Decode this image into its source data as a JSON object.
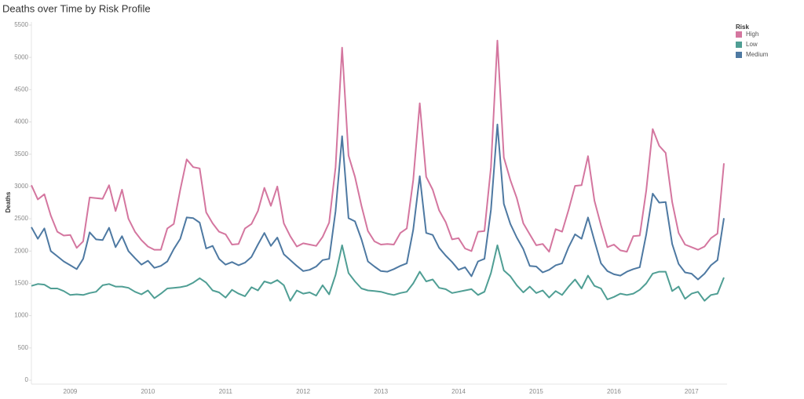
{
  "chart_data": {
    "type": "line",
    "title": "Deaths over Time by Risk Profile",
    "y_label": "Deaths",
    "legend_title": "Risk",
    "categories": [
      null,
      null,
      null,
      null,
      null,
      null,
      "2009",
      null,
      null,
      null,
      null,
      null,
      null,
      null,
      null,
      null,
      null,
      null,
      "2010",
      null,
      null,
      null,
      null,
      null,
      null,
      null,
      null,
      null,
      null,
      null,
      "2011",
      null,
      null,
      null,
      null,
      null,
      null,
      null,
      null,
      null,
      null,
      null,
      "2012",
      null,
      null,
      null,
      null,
      null,
      null,
      null,
      null,
      null,
      null,
      null,
      "2013",
      null,
      null,
      null,
      null,
      null,
      null,
      null,
      null,
      null,
      null,
      null,
      "2014",
      null,
      null,
      null,
      null,
      null,
      null,
      null,
      null,
      null,
      null,
      null,
      "2015",
      null,
      null,
      null,
      null,
      null,
      null,
      null,
      null,
      null,
      null,
      null,
      "2016",
      null,
      null,
      null,
      null,
      null,
      null,
      null,
      null,
      null,
      null,
      null,
      "2017",
      null,
      null,
      null,
      null,
      null
    ],
    "series": [
      {
        "name": "High",
        "color": "#d4769f",
        "values": [
          3020,
          2800,
          2880,
          2550,
          2300,
          2240,
          2250,
          2050,
          2150,
          2830,
          2820,
          2810,
          3020,
          2620,
          2950,
          2500,
          2300,
          2170,
          2070,
          2020,
          2020,
          2350,
          2420,
          2950,
          3420,
          3300,
          3280,
          2600,
          2430,
          2300,
          2260,
          2100,
          2110,
          2350,
          2420,
          2620,
          2980,
          2700,
          3000,
          2430,
          2230,
          2070,
          2120,
          2100,
          2080,
          2220,
          2440,
          3300,
          5150,
          3480,
          3150,
          2700,
          2310,
          2150,
          2100,
          2110,
          2100,
          2280,
          2350,
          3100,
          4290,
          3150,
          2950,
          2630,
          2450,
          2180,
          2200,
          2040,
          2000,
          2300,
          2310,
          3300,
          5260,
          3450,
          3100,
          2820,
          2430,
          2260,
          2090,
          2110,
          1990,
          2340,
          2300,
          2640,
          3010,
          3020,
          3470,
          2780,
          2400,
          2060,
          2100,
          2010,
          1990,
          2230,
          2240,
          2940,
          3890,
          3630,
          3520,
          2760,
          2280,
          2100,
          2060,
          2020,
          2070,
          2200,
          2270,
          3360
        ]
      },
      {
        "name": "Low",
        "color": "#4f9e94",
        "values": [
          1460,
          1490,
          1480,
          1420,
          1420,
          1380,
          1320,
          1330,
          1320,
          1350,
          1370,
          1470,
          1490,
          1450,
          1450,
          1430,
          1370,
          1330,
          1390,
          1270,
          1340,
          1420,
          1430,
          1440,
          1460,
          1510,
          1580,
          1510,
          1390,
          1360,
          1280,
          1400,
          1340,
          1300,
          1440,
          1390,
          1530,
          1500,
          1550,
          1470,
          1230,
          1390,
          1340,
          1360,
          1310,
          1470,
          1330,
          1630,
          2090,
          1660,
          1530,
          1420,
          1390,
          1380,
          1370,
          1340,
          1320,
          1350,
          1370,
          1500,
          1680,
          1530,
          1560,
          1430,
          1410,
          1350,
          1370,
          1390,
          1410,
          1320,
          1370,
          1660,
          2090,
          1700,
          1610,
          1470,
          1360,
          1450,
          1350,
          1390,
          1280,
          1380,
          1320,
          1450,
          1560,
          1420,
          1620,
          1460,
          1420,
          1250,
          1290,
          1340,
          1320,
          1340,
          1400,
          1500,
          1650,
          1680,
          1680,
          1380,
          1450,
          1260,
          1340,
          1370,
          1230,
          1320,
          1340,
          1590
        ]
      },
      {
        "name": "Medium",
        "color": "#4e79a2",
        "values": [
          2370,
          2190,
          2350,
          2000,
          1920,
          1840,
          1780,
          1720,
          1880,
          2290,
          2180,
          2170,
          2360,
          2060,
          2230,
          2000,
          1890,
          1790,
          1850,
          1740,
          1770,
          1840,
          2030,
          2190,
          2520,
          2510,
          2440,
          2040,
          2080,
          1880,
          1790,
          1830,
          1780,
          1820,
          1910,
          2100,
          2280,
          2080,
          2210,
          1950,
          1860,
          1770,
          1690,
          1710,
          1760,
          1860,
          1880,
          2620,
          3780,
          2510,
          2460,
          2180,
          1840,
          1760,
          1690,
          1680,
          1720,
          1770,
          1810,
          2330,
          3160,
          2280,
          2250,
          2050,
          1930,
          1830,
          1710,
          1750,
          1610,
          1840,
          1880,
          2640,
          3960,
          2730,
          2420,
          2210,
          2030,
          1770,
          1760,
          1670,
          1710,
          1780,
          1810,
          2060,
          2260,
          2190,
          2520,
          2160,
          1810,
          1690,
          1640,
          1620,
          1680,
          1720,
          1750,
          2260,
          2890,
          2750,
          2760,
          2110,
          1800,
          1670,
          1650,
          1560,
          1650,
          1780,
          1860,
          2510
        ]
      }
    ],
    "ylim": [
      0,
      5500
    ],
    "yticks": [
      0,
      500,
      1000,
      1500,
      2000,
      2500,
      3000,
      3500,
      4000,
      4500,
      5000,
      5500
    ]
  }
}
